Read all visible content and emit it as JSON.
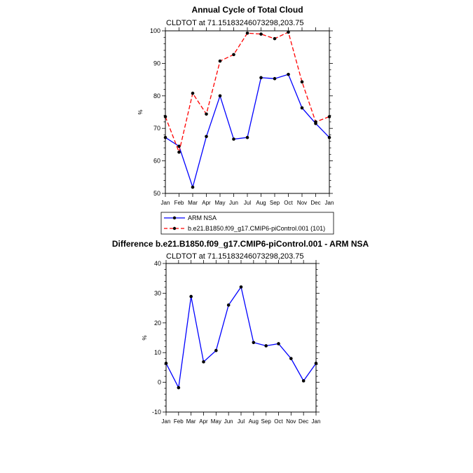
{
  "chart_data": [
    {
      "type": "line",
      "title": "Annual Cycle of Total Cloud",
      "subtitle": "CLDTOT at 71.15183246073298,203.75",
      "ylabel": "%",
      "ylim": [
        50,
        100
      ],
      "yticks": [
        50,
        60,
        70,
        80,
        90,
        100
      ],
      "categories": [
        "Jan",
        "Feb",
        "Mar",
        "Apr",
        "May",
        "Jun",
        "Jul",
        "Aug",
        "Sep",
        "Oct",
        "Nov",
        "Dec",
        "Jan"
      ],
      "series": [
        {
          "name": "ARM NSA",
          "color": "#0000ff",
          "dash": "solid",
          "values": [
            67.2,
            64.5,
            51.9,
            67.5,
            80.0,
            66.7,
            67.2,
            85.6,
            85.3,
            86.6,
            76.3,
            71.5,
            67.2
          ]
        },
        {
          "name": "b.e21.B1850.f09_g17.CMIP6-piControl.001 (101)",
          "color": "#ff0000",
          "dash": "dashed",
          "values": [
            73.6,
            62.7,
            80.8,
            74.4,
            90.7,
            92.7,
            99.3,
            99.0,
            97.6,
            99.6,
            84.3,
            72.0,
            73.6
          ]
        }
      ]
    },
    {
      "type": "line",
      "title": "Difference b.e21.B1850.f09_g17.CMIP6-piControl.001 - ARM NSA",
      "subtitle": "CLDTOT at 71.15183246073298,203.75",
      "ylabel": "%",
      "ylim": [
        -10,
        40
      ],
      "yticks": [
        -10,
        0,
        10,
        20,
        30,
        40
      ],
      "categories": [
        "Jan",
        "Feb",
        "Mar",
        "Apr",
        "May",
        "Jun",
        "Jul",
        "Aug",
        "Sep",
        "Oct",
        "Nov",
        "Dec",
        "Jan"
      ],
      "series": [
        {
          "name": "Difference",
          "color": "#0000ff",
          "dash": "solid",
          "values": [
            6.4,
            -1.8,
            28.9,
            6.9,
            10.7,
            26.0,
            32.1,
            13.4,
            12.3,
            13.0,
            8.0,
            0.5,
            6.4
          ]
        }
      ]
    }
  ]
}
